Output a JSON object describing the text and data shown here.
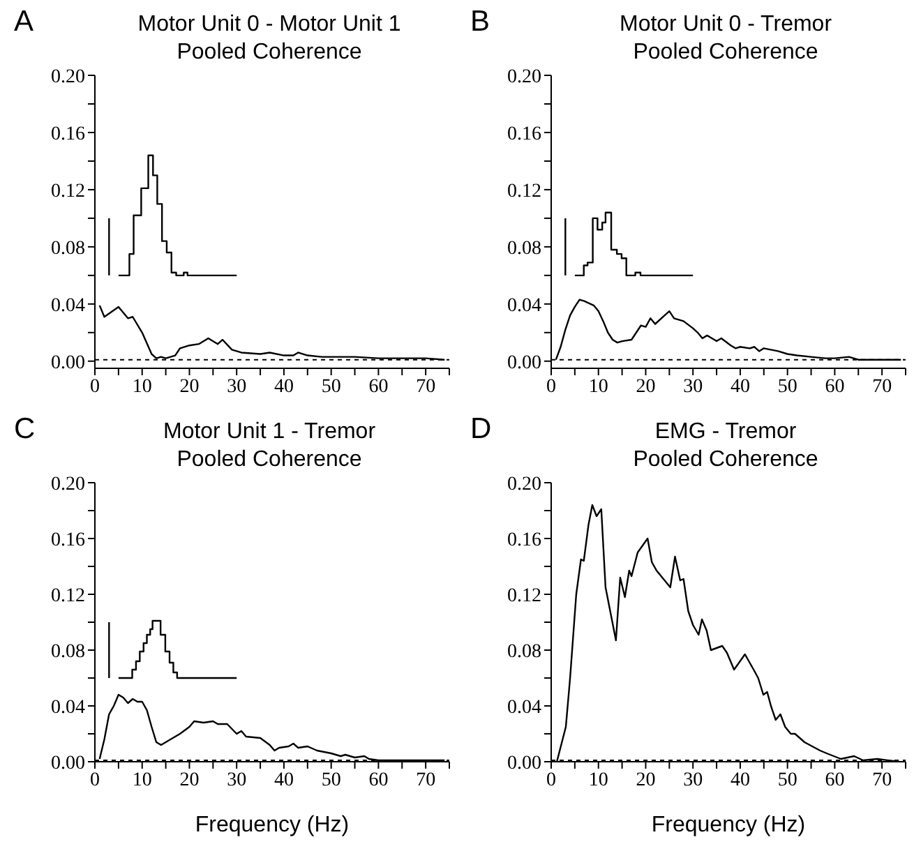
{
  "chart_data": [
    {
      "type": "line",
      "title": "Motor Unit 0 - Motor Unit 1",
      "subtitle": "Pooled Coherence",
      "annotations": [
        "A"
      ],
      "xlim": [
        0,
        75
      ],
      "ylim": [
        -0.005,
        0.2
      ],
      "xticks": [
        0,
        {
          "value": 5,
          "label": null
        },
        10,
        {
          "value": 15,
          "label": null
        },
        20,
        {
          "value": 25,
          "label": null
        },
        30,
        {
          "value": 35,
          "label": null
        },
        40,
        {
          "value": 45,
          "label": null
        },
        50,
        {
          "value": 55,
          "label": null
        },
        60,
        {
          "value": 65,
          "label": null
        },
        70,
        {
          "value": 75,
          "label": null
        }
      ],
      "yticks": [
        {
          "value": 0,
          "label": "0.00"
        },
        {
          "value": 0.02,
          "label": null
        },
        0.04,
        {
          "value": 0.06,
          "label": null
        },
        0.08,
        {
          "value": 0.1,
          "label": null
        },
        0.12,
        {
          "value": 0.14,
          "label": null
        },
        0.16,
        {
          "value": 0.18,
          "label": null
        },
        {
          "value": 0.2,
          "label": "0.20"
        }
      ],
      "ref_lines": [
        {
          "axis": "y",
          "value": 0.001,
          "line_style": "dashed",
          "color": "#000000"
        }
      ],
      "series": [
        {
          "color": "#000000",
          "x": [
            1,
            2,
            5,
            7,
            8,
            10,
            12,
            13,
            14,
            15,
            17,
            18,
            20,
            22,
            24,
            26,
            27,
            29,
            31,
            35,
            37,
            40,
            42,
            43,
            45,
            48,
            55,
            60,
            65,
            70,
            74
          ],
          "values": [
            0.039,
            0.031,
            0.038,
            0.03,
            0.031,
            0.02,
            0.005,
            0.002,
            0.003,
            0.002,
            0.004,
            0.009,
            0.011,
            0.012,
            0.016,
            0.012,
            0.015,
            0.008,
            0.006,
            0.005,
            0.006,
            0.004,
            0.004,
            0.006,
            0.004,
            0.003,
            0.003,
            0.002,
            0.002,
            0.002,
            0.001
          ]
        },
        {
          "type": "step",
          "color": "#000000",
          "x": [
            5,
            7.3,
            8.2,
            9.8,
            11.3,
            12.3,
            13.2,
            14.2,
            15.2,
            16.2,
            17.2,
            18.8,
            19.6,
            30
          ],
          "values": [
            0.06,
            0.075,
            0.102,
            0.121,
            0.144,
            0.13,
            0.11,
            0.084,
            0.076,
            0.062,
            0.06,
            0.062,
            0.06,
            0.06
          ]
        },
        {
          "color": "#000000",
          "x": [
            3,
            3
          ],
          "values": [
            0.06,
            0.1
          ]
        }
      ]
    },
    {
      "type": "line",
      "title": "Motor Unit 0 - Tremor",
      "subtitle": "Pooled Coherence",
      "annotations": [
        "B"
      ],
      "xlim": [
        0,
        75
      ],
      "ylim": [
        -0.005,
        0.2
      ],
      "xticks": [
        0,
        {
          "value": 5,
          "label": null
        },
        10,
        {
          "value": 15,
          "label": null
        },
        20,
        {
          "value": 25,
          "label": null
        },
        30,
        {
          "value": 35,
          "label": null
        },
        40,
        {
          "value": 45,
          "label": null
        },
        50,
        {
          "value": 55,
          "label": null
        },
        60,
        {
          "value": 65,
          "label": null
        },
        70,
        {
          "value": 75,
          "label": null
        }
      ],
      "yticks": [
        {
          "value": 0,
          "label": "0.00"
        },
        {
          "value": 0.02,
          "label": null
        },
        0.04,
        {
          "value": 0.06,
          "label": null
        },
        0.08,
        {
          "value": 0.1,
          "label": null
        },
        0.12,
        {
          "value": 0.14,
          "label": null
        },
        0.16,
        {
          "value": 0.18,
          "label": null
        },
        {
          "value": 0.2,
          "label": "0.20"
        }
      ],
      "ref_lines": [
        {
          "axis": "y",
          "value": 0.001,
          "line_style": "dashed",
          "color": "#000000"
        }
      ],
      "series": [
        {
          "color": "#000000",
          "x": [
            1,
            2,
            3,
            4,
            5,
            6,
            7,
            9,
            10,
            11,
            12,
            13,
            14,
            15,
            17,
            18,
            19,
            20,
            21,
            22,
            24,
            25,
            26,
            28,
            30,
            31,
            32,
            33,
            35,
            36,
            38,
            39,
            40,
            42,
            43,
            44,
            45,
            48,
            50,
            52,
            55,
            58,
            60,
            63,
            65,
            68,
            70,
            74
          ],
          "values": [
            0.001,
            0.01,
            0.022,
            0.032,
            0.038,
            0.043,
            0.042,
            0.039,
            0.035,
            0.028,
            0.02,
            0.015,
            0.013,
            0.014,
            0.015,
            0.02,
            0.025,
            0.024,
            0.03,
            0.026,
            0.032,
            0.035,
            0.03,
            0.028,
            0.023,
            0.02,
            0.016,
            0.018,
            0.014,
            0.016,
            0.011,
            0.009,
            0.01,
            0.009,
            0.01,
            0.007,
            0.009,
            0.007,
            0.005,
            0.004,
            0.003,
            0.002,
            0.002,
            0.003,
            0.001,
            0.001,
            0.001,
            0.001
          ]
        },
        {
          "type": "step",
          "color": "#000000",
          "x": [
            5,
            6.9,
            7.7,
            8.8,
            9.8,
            10.8,
            11.5,
            12.7,
            13.9,
            14.9,
            15.9,
            17.8,
            18.9,
            30
          ],
          "values": [
            0.06,
            0.067,
            0.069,
            0.1,
            0.092,
            0.097,
            0.104,
            0.078,
            0.075,
            0.072,
            0.06,
            0.062,
            0.06,
            0.06
          ]
        },
        {
          "color": "#000000",
          "x": [
            3,
            3
          ],
          "values": [
            0.06,
            0.1
          ]
        }
      ]
    },
    {
      "type": "line",
      "title": "Motor Unit 1 - Tremor",
      "subtitle": "Pooled Coherence",
      "xlabel": "Frequency (Hz)",
      "annotations": [
        "C"
      ],
      "xlim": [
        0,
        75
      ],
      "ylim": [
        0,
        0.2
      ],
      "xticks": [
        0,
        {
          "value": 5,
          "label": null
        },
        10,
        {
          "value": 15,
          "label": null
        },
        20,
        {
          "value": 25,
          "label": null
        },
        30,
        {
          "value": 35,
          "label": null
        },
        40,
        {
          "value": 45,
          "label": null
        },
        50,
        {
          "value": 55,
          "label": null
        },
        60,
        {
          "value": 65,
          "label": null
        },
        70,
        {
          "value": 75,
          "label": null
        }
      ],
      "yticks": [
        {
          "value": 0,
          "label": "0.00"
        },
        {
          "value": 0.02,
          "label": null
        },
        0.04,
        {
          "value": 0.06,
          "label": null
        },
        0.08,
        {
          "value": 0.1,
          "label": null
        },
        0.12,
        {
          "value": 0.14,
          "label": null
        },
        0.16,
        {
          "value": 0.18,
          "label": null
        },
        {
          "value": 0.2,
          "label": "0.20"
        }
      ],
      "ref_lines": [
        {
          "axis": "y",
          "value": 0.001,
          "line_style": "dashed",
          "color": "#000000"
        }
      ],
      "series": [
        {
          "color": "#000000",
          "x": [
            1,
            2,
            3,
            4,
            5,
            6,
            7,
            8,
            9,
            10,
            11,
            12,
            13,
            14,
            16,
            18,
            20,
            21,
            23,
            25,
            26,
            28,
            30,
            31,
            32,
            35,
            37,
            38,
            39,
            41,
            42,
            43,
            45,
            47,
            50,
            52,
            53,
            55,
            57,
            58,
            60,
            63,
            65,
            70,
            74
          ],
          "values": [
            0.002,
            0.016,
            0.034,
            0.04,
            0.048,
            0.046,
            0.042,
            0.045,
            0.043,
            0.043,
            0.037,
            0.025,
            0.014,
            0.012,
            0.016,
            0.02,
            0.025,
            0.029,
            0.028,
            0.029,
            0.027,
            0.027,
            0.02,
            0.022,
            0.018,
            0.017,
            0.012,
            0.008,
            0.01,
            0.011,
            0.013,
            0.01,
            0.011,
            0.008,
            0.006,
            0.004,
            0.005,
            0.003,
            0.004,
            0.002,
            0.001,
            0.001,
            0.001,
            0.001,
            0.001
          ]
        },
        {
          "type": "step",
          "color": "#000000",
          "x": [
            5,
            7.9,
            8.7,
            9.5,
            10.3,
            11,
            11.7,
            12.2,
            13.9,
            14.9,
            15.8,
            16.6,
            17.4,
            30
          ],
          "values": [
            0.06,
            0.066,
            0.072,
            0.079,
            0.085,
            0.091,
            0.095,
            0.101,
            0.091,
            0.079,
            0.071,
            0.064,
            0.06,
            0.06
          ]
        },
        {
          "color": "#000000",
          "x": [
            3,
            3
          ],
          "values": [
            0.06,
            0.1
          ]
        }
      ]
    },
    {
      "type": "line",
      "title": "EMG - Tremor",
      "subtitle": "Pooled Coherence",
      "xlabel": "Frequency (Hz)",
      "annotations": [
        "D"
      ],
      "xlim": [
        0,
        75
      ],
      "ylim": [
        0,
        0.2
      ],
      "xticks": [
        0,
        {
          "value": 5,
          "label": null
        },
        10,
        {
          "value": 15,
          "label": null
        },
        20,
        {
          "value": 25,
          "label": null
        },
        30,
        {
          "value": 35,
          "label": null
        },
        40,
        {
          "value": 45,
          "label": null
        },
        50,
        {
          "value": 55,
          "label": null
        },
        60,
        {
          "value": 65,
          "label": null
        },
        70,
        {
          "value": 75,
          "label": null
        }
      ],
      "yticks": [
        {
          "value": 0,
          "label": "0.00"
        },
        {
          "value": 0.02,
          "label": null
        },
        0.04,
        {
          "value": 0.06,
          "label": null
        },
        0.08,
        {
          "value": 0.1,
          "label": null
        },
        0.12,
        {
          "value": 0.14,
          "label": null
        },
        0.16,
        {
          "value": 0.18,
          "label": null
        },
        {
          "value": 0.2,
          "label": "0.20"
        }
      ],
      "ref_lines": [
        {
          "axis": "y",
          "value": 0.001,
          "line_style": "dashed",
          "color": "#000000"
        }
      ],
      "series": [
        {
          "color": "#000000",
          "x": [
            1.2,
            3.1,
            4,
            5.3,
            6.3,
            6.9,
            7.9,
            8.7,
            9.6,
            10.6,
            11.5,
            13.7,
            14.6,
            15.6,
            16.5,
            17,
            18.3,
            20.4,
            21.3,
            22.3,
            25.2,
            26.2,
            27.3,
            28,
            29,
            30,
            31.2,
            31.9,
            32.9,
            33.8,
            36.2,
            37.2,
            38.7,
            41,
            43,
            43.8,
            44.9,
            45.7,
            46.5,
            47.5,
            48.5,
            49.5,
            50.7,
            51.6,
            53.6,
            56.9,
            58.3,
            61.3,
            64.1,
            66,
            69,
            73.7
          ],
          "values": [
            0,
            0.025,
            0.06,
            0.12,
            0.145,
            0.144,
            0.17,
            0.184,
            0.176,
            0.181,
            0.125,
            0.087,
            0.132,
            0.118,
            0.137,
            0.133,
            0.15,
            0.16,
            0.143,
            0.137,
            0.125,
            0.147,
            0.13,
            0.131,
            0.108,
            0.098,
            0.091,
            0.102,
            0.094,
            0.08,
            0.083,
            0.078,
            0.066,
            0.077,
            0.065,
            0.06,
            0.048,
            0.05,
            0.04,
            0.03,
            0.034,
            0.025,
            0.02,
            0.02,
            0.014,
            0.008,
            0.006,
            0.002,
            0.004,
            0.001,
            0.002,
            0
          ]
        }
      ]
    }
  ]
}
